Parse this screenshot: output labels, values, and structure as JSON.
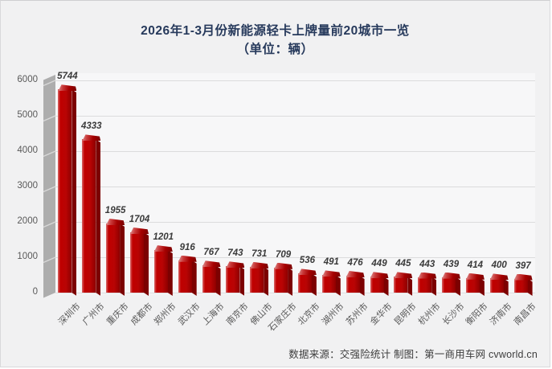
{
  "title": {
    "line1": "2026年1-3月份新能源轻卡上牌量前20城市一览",
    "line2": "（单位：辆）"
  },
  "footer": {
    "credit": "数据来源：交强险统计 制图：第一商用车网 cvworld.cn"
  },
  "chart_data": {
    "type": "bar",
    "style": "3d-column",
    "title": "2026年1-3月份新能源轻卡上牌量前20城市一览",
    "subtitle": "（单位：辆）",
    "categories": [
      "深圳市",
      "广州市",
      "重庆市",
      "成都市",
      "郑州市",
      "武汉市",
      "上海市",
      "南京市",
      "佛山市",
      "石家庄市",
      "北京市",
      "湖州市",
      "苏州市",
      "金华市",
      "昆明市",
      "杭州市",
      "长沙市",
      "衡阳市",
      "济南市",
      "南昌市"
    ],
    "values": [
      5744,
      4333,
      1955,
      1704,
      1201,
      916,
      767,
      743,
      731,
      709,
      536,
      491,
      476,
      449,
      445,
      443,
      439,
      414,
      400,
      397
    ],
    "xlabel": "",
    "ylabel": "",
    "ylim": [
      0,
      6000
    ],
    "yticks": [
      0,
      1000,
      2000,
      3000,
      4000,
      5000,
      6000
    ],
    "grid": true,
    "legend": false,
    "value_labels": true
  },
  "colors": {
    "title_text": "#273A5C",
    "bar_front_main": "#C00000",
    "bar_front_dark": "#8E0000",
    "bar_highlight": "#E09A9A",
    "bar_side": "#7C0101",
    "wall": "#ADADAD",
    "wall_notch": "#D8D8D8",
    "grid_line": "#DCDCDD",
    "axis_text": "#595959",
    "value_text": "#3A3A3A",
    "page_bg": "#F1F1F2",
    "plot_bg": "#F7F7F8"
  }
}
